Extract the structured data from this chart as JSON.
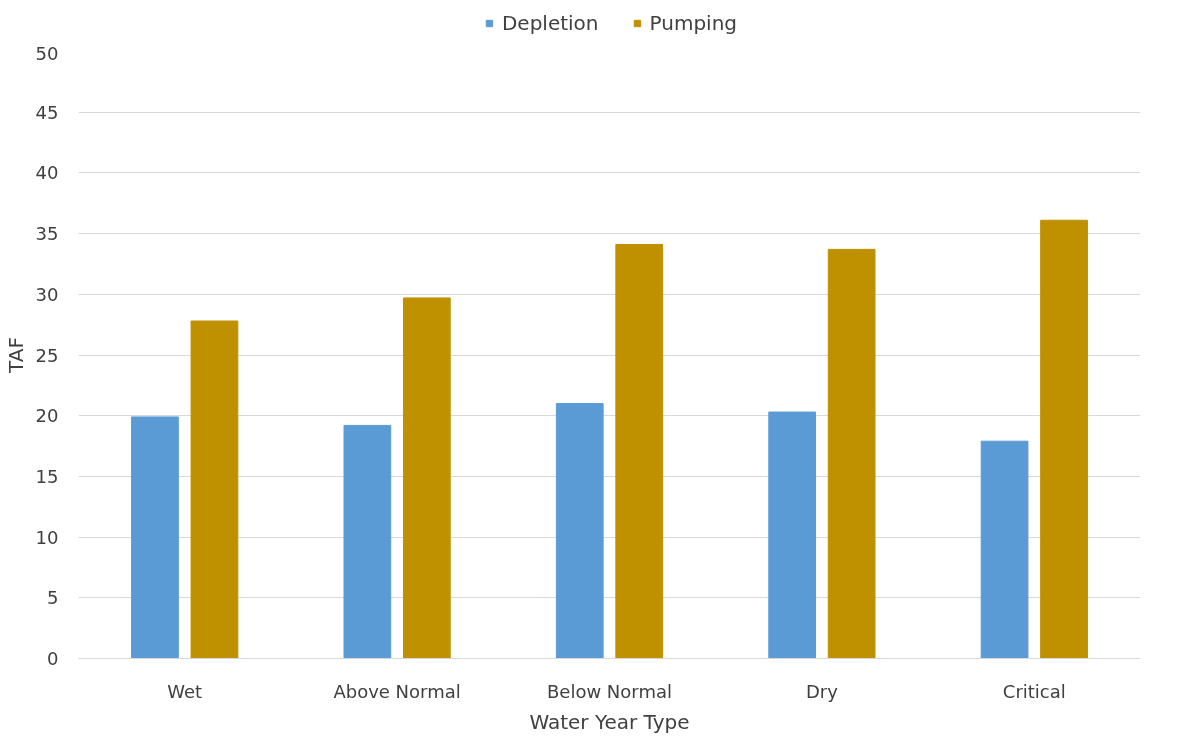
{
  "chart_data": {
    "type": "bar",
    "xlabel": "Water Year Type",
    "ylabel": "TAF",
    "categories": [
      "Wet",
      "Above Normal",
      "Below Normal",
      "Dry",
      "Critical"
    ],
    "series": [
      {
        "name": "Depletion",
        "color": "#5b9bd5",
        "values": [
          19.9,
          19.2,
          21.0,
          20.3,
          17.9
        ]
      },
      {
        "name": "Pumping",
        "color": "#bf9000",
        "values": [
          27.8,
          29.7,
          34.1,
          33.7,
          36.1
        ]
      }
    ],
    "ylim": [
      0,
      50
    ],
    "yticks": [
      0,
      5,
      10,
      15,
      20,
      25,
      30,
      35,
      40,
      45,
      50
    ],
    "grid": "y",
    "legend": "top"
  }
}
